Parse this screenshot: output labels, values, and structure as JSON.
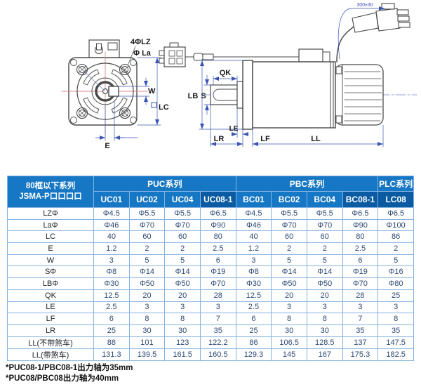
{
  "drawing": {
    "front_view": {
      "label_bolt": "4ΦLZ",
      "label_flange": "Φ La",
      "label_w": "W",
      "label_lc": "LC",
      "label_e": "E"
    },
    "side_view": {
      "label_qk": "QK",
      "label_lb": "LB",
      "label_s": "S",
      "label_le": "LE",
      "label_lr": "LR",
      "label_lf": "LF",
      "label_ll": "LL",
      "label_cable": "300±30"
    }
  },
  "table": {
    "corner": {
      "line1": "80框以下系列",
      "line2": "JSMA-P口口口口"
    },
    "groups": [
      {
        "label": "PUC系列",
        "span": 4
      },
      {
        "label": "PBC系列",
        "span": 4
      },
      {
        "label": "PLC系列",
        "span": 1
      }
    ],
    "columns": [
      "UC01",
      "UC02",
      "UC04",
      "UC08-1",
      "BC01",
      "BC02",
      "BC04",
      "BC08-1",
      "LC08"
    ],
    "highlight_columns": [
      3,
      7,
      8
    ],
    "rows": [
      {
        "label": "LZΦ",
        "values": [
          "Φ4.5",
          "Φ5.5",
          "Φ5.5",
          "Φ6.5",
          "Φ4.5",
          "Φ5.5",
          "Φ5.5",
          "Φ6.5",
          "Φ6.5"
        ]
      },
      {
        "label": "LaΦ",
        "values": [
          "Φ46",
          "Φ70",
          "Φ70",
          "Φ90",
          "Φ46",
          "Φ70",
          "Φ70",
          "Φ90",
          "Φ100"
        ]
      },
      {
        "label": "LC",
        "values": [
          "40",
          "60",
          "60",
          "80",
          "40",
          "60",
          "60",
          "80",
          "86"
        ]
      },
      {
        "label": "E",
        "values": [
          "1.2",
          "2",
          "2",
          "2.5",
          "1.2",
          "2",
          "2",
          "2.5",
          "2"
        ]
      },
      {
        "label": "W",
        "values": [
          "3",
          "5",
          "5",
          "6",
          "3",
          "5",
          "5",
          "6",
          "5"
        ]
      },
      {
        "label": "SΦ",
        "values": [
          "Φ8",
          "Φ14",
          "Φ14",
          "Φ19",
          "Φ8",
          "Φ14",
          "Φ14",
          "Φ19",
          "Φ16"
        ]
      },
      {
        "label": "LBΦ",
        "values": [
          "Φ30",
          "Φ50",
          "Φ50",
          "Φ70",
          "Φ30",
          "Φ50",
          "Φ50",
          "Φ70",
          "Φ80"
        ]
      },
      {
        "label": "QK",
        "values": [
          "12.5",
          "20",
          "20",
          "28",
          "12.5",
          "20",
          "20",
          "28",
          "25"
        ]
      },
      {
        "label": "LE",
        "values": [
          "2.5",
          "3",
          "3",
          "3",
          "2.5",
          "3",
          "3",
          "3",
          "3"
        ]
      },
      {
        "label": "LF",
        "values": [
          "6",
          "8",
          "8",
          "7",
          "6",
          "8",
          "8",
          "7",
          "8"
        ]
      },
      {
        "label": "LR",
        "values": [
          "25",
          "30",
          "30",
          "35",
          "25",
          "30",
          "30",
          "35",
          "35"
        ]
      },
      {
        "label": "LL(不带煞车)",
        "values": [
          "88",
          "101",
          "123",
          "122.2",
          "86",
          "106.5",
          "128.5",
          "137",
          "147.5"
        ]
      },
      {
        "label": "LL(带煞车)",
        "values": [
          "131.3",
          "139.5",
          "161.5",
          "160.5",
          "129.3",
          "145",
          "167",
          "175.3",
          "182.5"
        ]
      }
    ]
  },
  "footnotes": [
    "*PUC08-1/PBC08-1出力轴为35mm",
    "*PUC08/PBC08出力轴为40mm"
  ],
  "colors": {
    "header_bg": "#1677c4",
    "header_bg_dark": "#0b5ba3",
    "grid_border": "#85b3e2",
    "dimension_blue": "#3a55b5",
    "centerline_red": "#d98a8a",
    "outline_gray": "#4a4a4a"
  }
}
